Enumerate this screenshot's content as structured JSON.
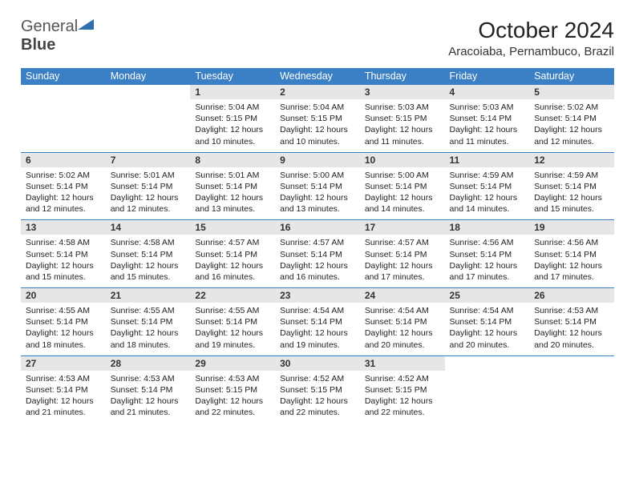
{
  "logo": {
    "t1": "General",
    "t2": "Blue"
  },
  "title": "October 2024",
  "location": "Aracoiaba, Pernambuco, Brazil",
  "headers": [
    "Sunday",
    "Monday",
    "Tuesday",
    "Wednesday",
    "Thursday",
    "Friday",
    "Saturday"
  ],
  "colors": {
    "header_bg": "#3b7fc4",
    "header_fg": "#ffffff",
    "daynum_bg": "#e6e6e6",
    "row_border": "#3b7fc4",
    "logo_tri": "#2f6fab"
  },
  "weeks": [
    [
      null,
      null,
      {
        "n": "1",
        "sr": "5:04 AM",
        "ss": "5:15 PM",
        "dl": "12 hours and 10 minutes."
      },
      {
        "n": "2",
        "sr": "5:04 AM",
        "ss": "5:15 PM",
        "dl": "12 hours and 10 minutes."
      },
      {
        "n": "3",
        "sr": "5:03 AM",
        "ss": "5:15 PM",
        "dl": "12 hours and 11 minutes."
      },
      {
        "n": "4",
        "sr": "5:03 AM",
        "ss": "5:14 PM",
        "dl": "12 hours and 11 minutes."
      },
      {
        "n": "5",
        "sr": "5:02 AM",
        "ss": "5:14 PM",
        "dl": "12 hours and 12 minutes."
      }
    ],
    [
      {
        "n": "6",
        "sr": "5:02 AM",
        "ss": "5:14 PM",
        "dl": "12 hours and 12 minutes."
      },
      {
        "n": "7",
        "sr": "5:01 AM",
        "ss": "5:14 PM",
        "dl": "12 hours and 12 minutes."
      },
      {
        "n": "8",
        "sr": "5:01 AM",
        "ss": "5:14 PM",
        "dl": "12 hours and 13 minutes."
      },
      {
        "n": "9",
        "sr": "5:00 AM",
        "ss": "5:14 PM",
        "dl": "12 hours and 13 minutes."
      },
      {
        "n": "10",
        "sr": "5:00 AM",
        "ss": "5:14 PM",
        "dl": "12 hours and 14 minutes."
      },
      {
        "n": "11",
        "sr": "4:59 AM",
        "ss": "5:14 PM",
        "dl": "12 hours and 14 minutes."
      },
      {
        "n": "12",
        "sr": "4:59 AM",
        "ss": "5:14 PM",
        "dl": "12 hours and 15 minutes."
      }
    ],
    [
      {
        "n": "13",
        "sr": "4:58 AM",
        "ss": "5:14 PM",
        "dl": "12 hours and 15 minutes."
      },
      {
        "n": "14",
        "sr": "4:58 AM",
        "ss": "5:14 PM",
        "dl": "12 hours and 15 minutes."
      },
      {
        "n": "15",
        "sr": "4:57 AM",
        "ss": "5:14 PM",
        "dl": "12 hours and 16 minutes."
      },
      {
        "n": "16",
        "sr": "4:57 AM",
        "ss": "5:14 PM",
        "dl": "12 hours and 16 minutes."
      },
      {
        "n": "17",
        "sr": "4:57 AM",
        "ss": "5:14 PM",
        "dl": "12 hours and 17 minutes."
      },
      {
        "n": "18",
        "sr": "4:56 AM",
        "ss": "5:14 PM",
        "dl": "12 hours and 17 minutes."
      },
      {
        "n": "19",
        "sr": "4:56 AM",
        "ss": "5:14 PM",
        "dl": "12 hours and 17 minutes."
      }
    ],
    [
      {
        "n": "20",
        "sr": "4:55 AM",
        "ss": "5:14 PM",
        "dl": "12 hours and 18 minutes."
      },
      {
        "n": "21",
        "sr": "4:55 AM",
        "ss": "5:14 PM",
        "dl": "12 hours and 18 minutes."
      },
      {
        "n": "22",
        "sr": "4:55 AM",
        "ss": "5:14 PM",
        "dl": "12 hours and 19 minutes."
      },
      {
        "n": "23",
        "sr": "4:54 AM",
        "ss": "5:14 PM",
        "dl": "12 hours and 19 minutes."
      },
      {
        "n": "24",
        "sr": "4:54 AM",
        "ss": "5:14 PM",
        "dl": "12 hours and 20 minutes."
      },
      {
        "n": "25",
        "sr": "4:54 AM",
        "ss": "5:14 PM",
        "dl": "12 hours and 20 minutes."
      },
      {
        "n": "26",
        "sr": "4:53 AM",
        "ss": "5:14 PM",
        "dl": "12 hours and 20 minutes."
      }
    ],
    [
      {
        "n": "27",
        "sr": "4:53 AM",
        "ss": "5:14 PM",
        "dl": "12 hours and 21 minutes."
      },
      {
        "n": "28",
        "sr": "4:53 AM",
        "ss": "5:14 PM",
        "dl": "12 hours and 21 minutes."
      },
      {
        "n": "29",
        "sr": "4:53 AM",
        "ss": "5:15 PM",
        "dl": "12 hours and 22 minutes."
      },
      {
        "n": "30",
        "sr": "4:52 AM",
        "ss": "5:15 PM",
        "dl": "12 hours and 22 minutes."
      },
      {
        "n": "31",
        "sr": "4:52 AM",
        "ss": "5:15 PM",
        "dl": "12 hours and 22 minutes."
      },
      null,
      null
    ]
  ],
  "labels": {
    "sr": "Sunrise: ",
    "ss": "Sunset: ",
    "dl": "Daylight: "
  }
}
